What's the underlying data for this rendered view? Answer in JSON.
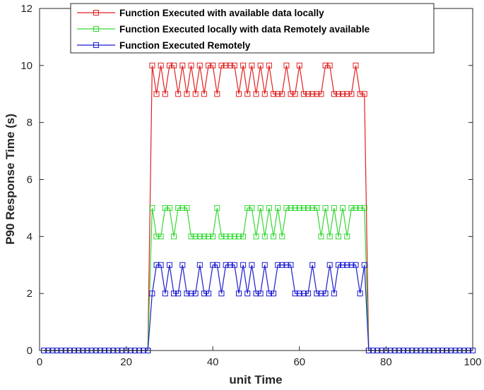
{
  "chart_data": {
    "type": "line",
    "title": "",
    "xlabel": "unit Time",
    "ylabel": "P90 Response Time (s)",
    "xlim": [
      0,
      100
    ],
    "ylim": [
      0,
      12
    ],
    "xticks": [
      "0",
      "20",
      "40",
      "60",
      "80",
      "100"
    ],
    "yticks": [
      "0",
      "2",
      "4",
      "6",
      "8",
      "10",
      "12"
    ],
    "grid": false,
    "legend_position": "top",
    "marker": "square",
    "series": [
      {
        "name": "Function Executed with available data locally",
        "color": "#e02020",
        "x": [
          1,
          2,
          3,
          4,
          5,
          6,
          7,
          8,
          9,
          10,
          11,
          12,
          13,
          14,
          15,
          16,
          17,
          18,
          19,
          20,
          21,
          22,
          23,
          24,
          25,
          26,
          27,
          28,
          29,
          30,
          31,
          32,
          33,
          34,
          35,
          36,
          37,
          38,
          39,
          40,
          41,
          42,
          43,
          44,
          45,
          46,
          47,
          48,
          49,
          50,
          51,
          52,
          53,
          54,
          55,
          56,
          57,
          58,
          59,
          60,
          61,
          62,
          63,
          64,
          65,
          66,
          67,
          68,
          69,
          70,
          71,
          72,
          73,
          74,
          75,
          76,
          77,
          78,
          79,
          80,
          81,
          82,
          83,
          84,
          85,
          86,
          87,
          88,
          89,
          90,
          91,
          92,
          93,
          94,
          95,
          96,
          97,
          98,
          99,
          100
        ],
        "y": [
          0,
          0,
          0,
          0,
          0,
          0,
          0,
          0,
          0,
          0,
          0,
          0,
          0,
          0,
          0,
          0,
          0,
          0,
          0,
          0,
          0,
          0,
          0,
          0,
          0,
          10,
          9,
          10,
          9,
          10,
          10,
          9,
          10,
          9,
          10,
          9,
          10,
          9,
          10,
          10,
          9,
          10,
          10,
          10,
          10,
          9,
          10,
          9,
          10,
          9,
          10,
          9,
          10,
          9,
          9,
          9,
          10,
          9,
          9,
          10,
          9,
          9,
          9,
          9,
          9,
          10,
          10,
          9,
          9,
          9,
          9,
          9,
          10,
          9,
          9,
          0,
          0,
          0,
          0,
          0,
          0,
          0,
          0,
          0,
          0,
          0,
          0,
          0,
          0,
          0,
          0,
          0,
          0,
          0,
          0,
          0,
          0,
          0,
          0,
          0
        ]
      },
      {
        "name": "Function Executed locally with data Remotely available",
        "color": "#30d830",
        "x": [
          1,
          2,
          3,
          4,
          5,
          6,
          7,
          8,
          9,
          10,
          11,
          12,
          13,
          14,
          15,
          16,
          17,
          18,
          19,
          20,
          21,
          22,
          23,
          24,
          25,
          26,
          27,
          28,
          29,
          30,
          31,
          32,
          33,
          34,
          35,
          36,
          37,
          38,
          39,
          40,
          41,
          42,
          43,
          44,
          45,
          46,
          47,
          48,
          49,
          50,
          51,
          52,
          53,
          54,
          55,
          56,
          57,
          58,
          59,
          60,
          61,
          62,
          63,
          64,
          65,
          66,
          67,
          68,
          69,
          70,
          71,
          72,
          73,
          74,
          75,
          76,
          77,
          78,
          79,
          80,
          81,
          82,
          83,
          84,
          85,
          86,
          87,
          88,
          89,
          90,
          91,
          92,
          93,
          94,
          95,
          96,
          97,
          98,
          99,
          100
        ],
        "y": [
          0,
          0,
          0,
          0,
          0,
          0,
          0,
          0,
          0,
          0,
          0,
          0,
          0,
          0,
          0,
          0,
          0,
          0,
          0,
          0,
          0,
          0,
          0,
          0,
          0,
          5,
          4,
          4,
          5,
          5,
          4,
          5,
          5,
          5,
          4,
          4,
          4,
          4,
          4,
          4,
          5,
          4,
          4,
          4,
          4,
          4,
          4,
          5,
          5,
          4,
          5,
          4,
          5,
          4,
          5,
          4,
          5,
          5,
          5,
          5,
          5,
          5,
          5,
          5,
          4,
          5,
          4,
          5,
          4,
          5,
          4,
          5,
          5,
          5,
          5,
          0,
          0,
          0,
          0,
          0,
          0,
          0,
          0,
          0,
          0,
          0,
          0,
          0,
          0,
          0,
          0,
          0,
          0,
          0,
          0,
          0,
          0,
          0,
          0,
          0
        ]
      },
      {
        "name": "Function Executed Remotely",
        "color": "#1a1ad0",
        "x": [
          1,
          2,
          3,
          4,
          5,
          6,
          7,
          8,
          9,
          10,
          11,
          12,
          13,
          14,
          15,
          16,
          17,
          18,
          19,
          20,
          21,
          22,
          23,
          24,
          25,
          26,
          27,
          28,
          29,
          30,
          31,
          32,
          33,
          34,
          35,
          36,
          37,
          38,
          39,
          40,
          41,
          42,
          43,
          44,
          45,
          46,
          47,
          48,
          49,
          50,
          51,
          52,
          53,
          54,
          55,
          56,
          57,
          58,
          59,
          60,
          61,
          62,
          63,
          64,
          65,
          66,
          67,
          68,
          69,
          70,
          71,
          72,
          73,
          74,
          75,
          76,
          77,
          78,
          79,
          80,
          81,
          82,
          83,
          84,
          85,
          86,
          87,
          88,
          89,
          90,
          91,
          92,
          93,
          94,
          95,
          96,
          97,
          98,
          99,
          100
        ],
        "y": [
          0,
          0,
          0,
          0,
          0,
          0,
          0,
          0,
          0,
          0,
          0,
          0,
          0,
          0,
          0,
          0,
          0,
          0,
          0,
          0,
          0,
          0,
          0,
          0,
          0,
          2,
          3,
          3,
          2,
          3,
          2,
          2,
          3,
          2,
          2,
          2,
          3,
          2,
          2,
          3,
          3,
          2,
          3,
          3,
          3,
          2,
          3,
          2,
          3,
          2,
          2,
          3,
          2,
          2,
          3,
          3,
          3,
          3,
          2,
          2,
          2,
          2,
          3,
          2,
          2,
          2,
          3,
          2,
          3,
          3,
          3,
          3,
          3,
          2,
          3,
          0,
          0,
          0,
          0,
          0,
          0,
          0,
          0,
          0,
          0,
          0,
          0,
          0,
          0,
          0,
          0,
          0,
          0,
          0,
          0,
          0,
          0,
          0,
          0,
          0
        ]
      }
    ]
  }
}
